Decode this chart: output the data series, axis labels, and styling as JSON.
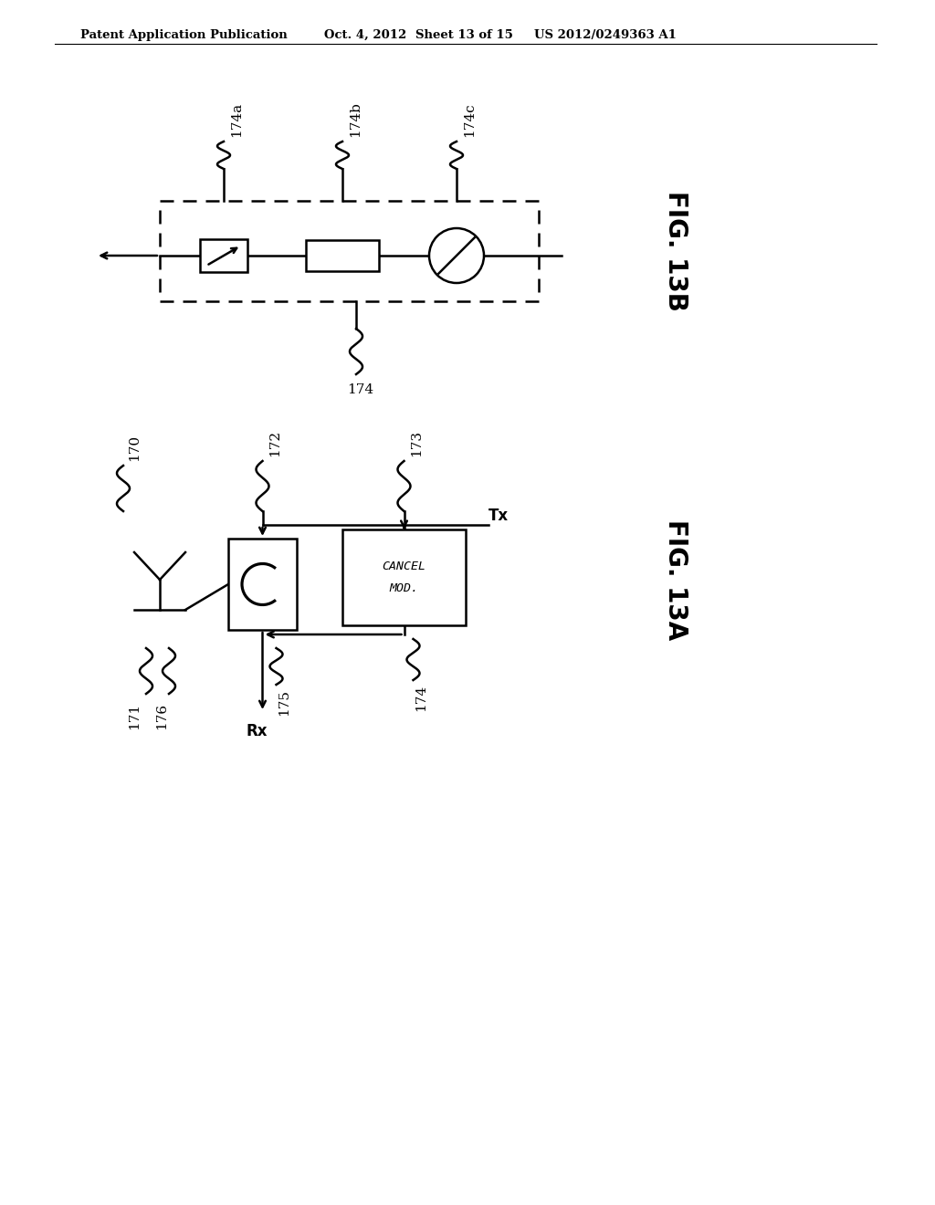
{
  "bg_color": "#ffffff",
  "header_text": "Patent Application Publication",
  "header_date": "Oct. 4, 2012",
  "header_sheet": "Sheet 13 of 15",
  "header_patent": "US 2012/0249363 A1",
  "fig13b_label": "FIG. 13B",
  "fig13a_label": "FIG. 13A",
  "label_174a": "174a",
  "label_174b": "174b",
  "label_174c": "174c",
  "label_174": "174",
  "label_170": "170",
  "label_171": "171",
  "label_172": "172",
  "label_173": "173",
  "label_174_13a": "174",
  "label_175": "175",
  "label_176": "176",
  "label_Tx": "Tx",
  "label_Rx": "Rx",
  "line_color": "#000000",
  "lw": 1.8
}
